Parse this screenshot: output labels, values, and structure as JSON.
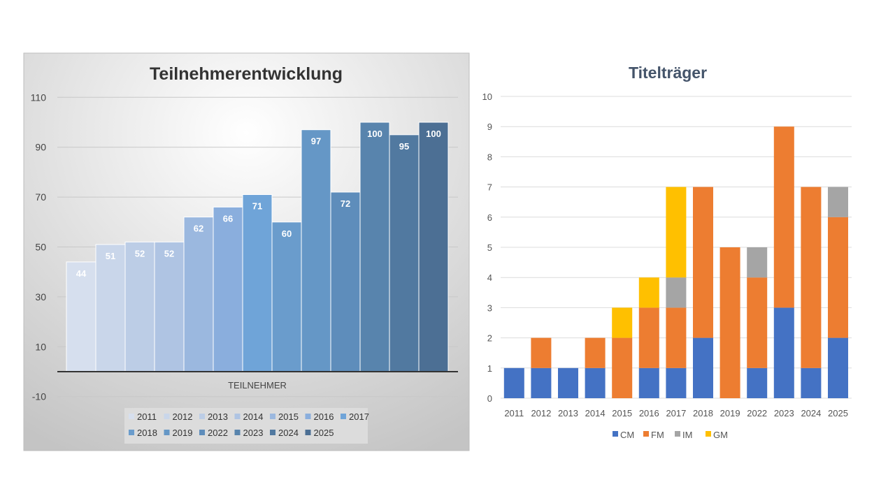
{
  "chart_data": [
    {
      "type": "bar",
      "title": "Teilnehmerentwicklung",
      "xlabel": "TEILNEHMER",
      "ylabel": "",
      "ylim": [
        -10,
        110
      ],
      "yticks": [
        110,
        90,
        70,
        50,
        30,
        10,
        -10
      ],
      "grid": true,
      "legend_position": "bottom",
      "categories": [
        "2011",
        "2012",
        "2013",
        "2014",
        "2015",
        "2016",
        "2017",
        "2018",
        "2019",
        "2022",
        "2023",
        "2024",
        "2025"
      ],
      "values": [
        44,
        51,
        52,
        52,
        62,
        66,
        71,
        60,
        97,
        72,
        100,
        95,
        100
      ],
      "colors": [
        "#d6dfee",
        "#c9d6ea",
        "#bccde6",
        "#afc4e3",
        "#9bb8df",
        "#8aaedd",
        "#6fa4d8",
        "#6a9ccc",
        "#6597c6",
        "#5e8dbb",
        "#5884ad",
        "#5179a0",
        "#4c6f94"
      ]
    },
    {
      "type": "bar",
      "stacked": true,
      "title": "Titelträger",
      "xlabel": "",
      "ylabel": "",
      "ylim": [
        0,
        10
      ],
      "yticks": [
        0,
        1,
        2,
        3,
        4,
        5,
        6,
        7,
        8,
        9,
        10
      ],
      "grid": true,
      "legend_position": "bottom",
      "categories": [
        "2011",
        "2012",
        "2013",
        "2014",
        "2015",
        "2016",
        "2017",
        "2018",
        "2019",
        "2022",
        "2023",
        "2024",
        "2025"
      ],
      "series": [
        {
          "name": "CM",
          "color": "#4472c4",
          "values": [
            1,
            1,
            1,
            1,
            0,
            1,
            1,
            2,
            0,
            1,
            3,
            1,
            2
          ]
        },
        {
          "name": "FM",
          "color": "#ed7d31",
          "values": [
            0,
            1,
            0,
            1,
            2,
            2,
            2,
            5,
            5,
            3,
            6,
            6,
            4
          ]
        },
        {
          "name": "IM",
          "color": "#a5a5a5",
          "values": [
            0,
            0,
            0,
            0,
            0,
            0,
            1,
            0,
            0,
            1,
            0,
            0,
            1
          ]
        },
        {
          "name": "GM",
          "color": "#ffc000",
          "values": [
            0,
            0,
            0,
            0,
            1,
            1,
            3,
            0,
            0,
            0,
            0,
            0,
            0
          ]
        }
      ]
    }
  ]
}
